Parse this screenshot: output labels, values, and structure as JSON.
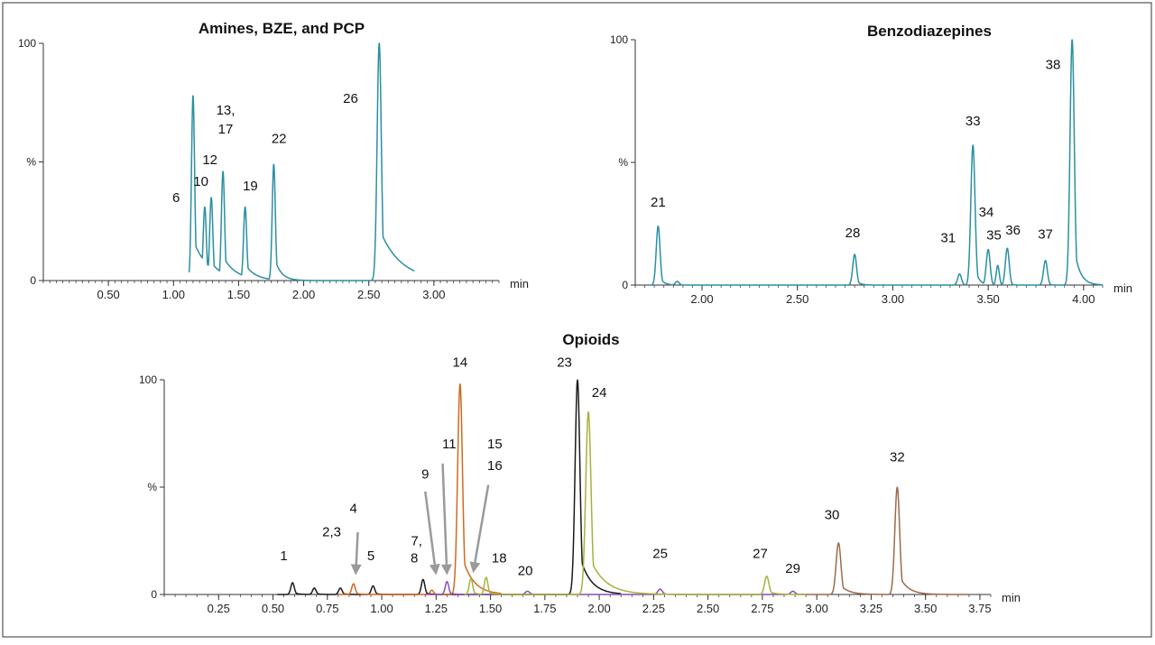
{
  "chart_data": [
    {
      "type": "line",
      "title": "Amines, BZE, and PCP",
      "xlabel": "min",
      "ylabel": "%",
      "xlim": [
        0.0,
        3.5
      ],
      "ylim": [
        0,
        100
      ],
      "y_ticks": [
        {
          "value": 0,
          "label": "0"
        },
        {
          "value": 50,
          "label": "%"
        },
        {
          "value": 100,
          "label": "100"
        }
      ],
      "x_ticks": [
        0.5,
        1.0,
        1.5,
        2.0,
        2.5,
        3.0
      ],
      "x_tick_labels": [
        "0.50",
        "1.00",
        "1.50",
        "2.00",
        "2.50",
        "3.00"
      ],
      "color": "#2a8fa3",
      "series": [
        {
          "name": "amines-trace",
          "color": "#2a8fa3",
          "baseline_range": [
            1.12,
            2.85
          ],
          "peaks": [
            {
              "rt": 1.15,
              "height": 78,
              "width": 0.012,
              "tail": 0.12
            },
            {
              "rt": 1.24,
              "height": 31,
              "width": 0.012,
              "tail": 0.1
            },
            {
              "rt": 1.29,
              "height": 35,
              "width": 0.012,
              "tail": 0.1
            },
            {
              "rt": 1.38,
              "height": 46,
              "width": 0.012,
              "tail": 0.1
            },
            {
              "rt": 1.38,
              "height": 16,
              "width": 0.012,
              "tail": 0.05
            },
            {
              "rt": 1.55,
              "height": 31,
              "width": 0.012,
              "tail": 0.08
            },
            {
              "rt": 1.77,
              "height": 49,
              "width": 0.012,
              "tail": 0.05
            },
            {
              "rt": 2.58,
              "height": 100,
              "width": 0.016,
              "tail": 0.16
            }
          ]
        }
      ],
      "peak_labels": [
        {
          "text": "6",
          "rt": 1.02,
          "y": 33
        },
        {
          "text": "10",
          "rt": 1.21,
          "y": 40
        },
        {
          "text": "12",
          "rt": 1.28,
          "y": 49
        },
        {
          "text": "13,",
          "rt": 1.4,
          "y": 70
        },
        {
          "text": "17",
          "rt": 1.4,
          "y": 62
        },
        {
          "text": "19",
          "rt": 1.59,
          "y": 38
        },
        {
          "text": "22",
          "rt": 1.81,
          "y": 58
        },
        {
          "text": "26",
          "rt": 2.36,
          "y": 75
        }
      ]
    },
    {
      "type": "line",
      "title": "Benzodiazepines",
      "xlabel": "min",
      "ylabel": "%",
      "xlim": [
        1.65,
        4.1
      ],
      "ylim": [
        0,
        100
      ],
      "y_ticks": [
        {
          "value": 0,
          "label": "0"
        },
        {
          "value": 50,
          "label": "%"
        },
        {
          "value": 100,
          "label": "100"
        }
      ],
      "x_ticks": [
        2.0,
        2.5,
        3.0,
        3.5,
        4.0
      ],
      "x_tick_labels": [
        "2.00",
        "2.50",
        "3.00",
        "3.50",
        "4.00"
      ],
      "color": "#2a8fa3",
      "series": [
        {
          "name": "benzodiazepines-trace",
          "color": "#2a8fa3",
          "baseline_range": [
            1.72,
            4.1
          ],
          "peaks": [
            {
              "rt": 1.77,
              "height": 24,
              "width": 0.01,
              "tail": 0.02
            },
            {
              "rt": 1.87,
              "height": 1.5,
              "width": 0.01,
              "tail": 0.01
            },
            {
              "rt": 2.8,
              "height": 12.5,
              "width": 0.01,
              "tail": 0.02
            },
            {
              "rt": 3.35,
              "height": 4.5,
              "width": 0.01,
              "tail": 0.01
            },
            {
              "rt": 3.42,
              "height": 57,
              "width": 0.011,
              "tail": 0.02
            },
            {
              "rt": 3.5,
              "height": 14.5,
              "width": 0.01,
              "tail": 0.01
            },
            {
              "rt": 3.55,
              "height": 8,
              "width": 0.008,
              "tail": 0.01
            },
            {
              "rt": 3.6,
              "height": 15,
              "width": 0.01,
              "tail": 0.01
            },
            {
              "rt": 3.8,
              "height": 10,
              "width": 0.01,
              "tail": 0.01
            },
            {
              "rt": 3.94,
              "height": 100,
              "width": 0.011,
              "tail": 0.03
            }
          ]
        }
      ],
      "peak_labels": [
        {
          "text": "21",
          "rt": 1.77,
          "y": 32
        },
        {
          "text": "28",
          "rt": 2.79,
          "y": 19.5
        },
        {
          "text": "31",
          "rt": 3.29,
          "y": 17.5
        },
        {
          "text": "33",
          "rt": 3.42,
          "y": 65
        },
        {
          "text": "34",
          "rt": 3.49,
          "y": 28
        },
        {
          "text": "35",
          "rt": 3.53,
          "y": 18.5
        },
        {
          "text": "36",
          "rt": 3.63,
          "y": 20.5
        },
        {
          "text": "37",
          "rt": 3.8,
          "y": 19
        },
        {
          "text": "38",
          "rt": 3.84,
          "y": 88
        }
      ]
    },
    {
      "type": "line",
      "title": "Opioids",
      "xlabel": "min",
      "ylabel": "%",
      "xlim": [
        0.0,
        3.8
      ],
      "ylim": [
        0,
        100
      ],
      "y_ticks": [
        {
          "value": 0,
          "label": "0"
        },
        {
          "value": 50,
          "label": "%"
        },
        {
          "value": 100,
          "label": "100"
        }
      ],
      "x_ticks": [
        0.25,
        0.5,
        0.75,
        1.0,
        1.25,
        1.5,
        1.75,
        2.0,
        2.25,
        2.5,
        2.75,
        3.0,
        3.25,
        3.5,
        3.75
      ],
      "x_tick_labels": [
        "0.25",
        "0.50",
        "0.75",
        "1.00",
        "1.25",
        "1.50",
        "1.75",
        "2.00",
        "2.25",
        "2.50",
        "2.75",
        "3.00",
        "3.25",
        "3.50",
        "3.75"
      ],
      "series": [
        {
          "name": "opioid-trace-black",
          "color": "#1a1a1a",
          "baseline_range": [
            0.52,
            2.1
          ],
          "peaks": [
            {
              "rt": 0.59,
              "height": 5.5,
              "width": 0.008,
              "tail": 0.02
            },
            {
              "rt": 0.69,
              "height": 3,
              "width": 0.008,
              "tail": 0.02
            },
            {
              "rt": 0.81,
              "height": 3,
              "width": 0.008,
              "tail": 0.02
            },
            {
              "rt": 0.96,
              "height": 4,
              "width": 0.008,
              "tail": 0.02
            },
            {
              "rt": 1.19,
              "height": 7,
              "width": 0.008,
              "tail": 0.02
            },
            {
              "rt": 1.9,
              "height": 100,
              "width": 0.011,
              "tail": 0.05
            }
          ]
        },
        {
          "name": "opioid-trace-orange",
          "color": "#d2691e",
          "baseline_range": [
            0.8,
            1.55
          ],
          "peaks": [
            {
              "rt": 0.87,
              "height": 5,
              "width": 0.008,
              "tail": 0.02
            },
            {
              "rt": 1.23,
              "height": 2,
              "width": 0.008,
              "tail": 0.02
            },
            {
              "rt": 1.36,
              "height": 98,
              "width": 0.011,
              "tail": 0.05
            },
            {
              "rt": 1.42,
              "height": 4,
              "width": 0.008,
              "tail": 0.01
            }
          ]
        },
        {
          "name": "opioid-trace-purple",
          "color": "#8a4fb0",
          "baseline_range": [
            1.2,
            2.95
          ],
          "peaks": [
            {
              "rt": 1.3,
              "height": 6,
              "width": 0.008,
              "tail": 0.02
            },
            {
              "rt": 1.67,
              "height": 1.5,
              "width": 0.01,
              "tail": 0.02
            },
            {
              "rt": 2.28,
              "height": 2.5,
              "width": 0.01,
              "tail": 0.02
            },
            {
              "rt": 2.89,
              "height": 1.5,
              "width": 0.01,
              "tail": 0.02
            }
          ]
        },
        {
          "name": "opioid-trace-olive",
          "color": "#a6b23c",
          "baseline_range": [
            1.38,
            2.95
          ],
          "peaks": [
            {
              "rt": 1.41,
              "height": 7.5,
              "width": 0.008,
              "tail": 0.02
            },
            {
              "rt": 1.48,
              "height": 8,
              "width": 0.008,
              "tail": 0.02
            },
            {
              "rt": 1.95,
              "height": 85,
              "width": 0.012,
              "tail": 0.07
            },
            {
              "rt": 2.77,
              "height": 8.5,
              "width": 0.01,
              "tail": 0.03
            }
          ]
        },
        {
          "name": "opioid-trace-brown",
          "color": "#9c6a4c",
          "baseline_range": [
            2.95,
            3.7
          ],
          "peaks": [
            {
              "rt": 3.1,
              "height": 24,
              "width": 0.011,
              "tail": 0.04
            },
            {
              "rt": 3.37,
              "height": 50,
              "width": 0.011,
              "tail": 0.04
            }
          ]
        }
      ],
      "peak_labels": [
        {
          "text": "1",
          "rt": 0.55,
          "y": 16
        },
        {
          "text": "2,3",
          "rt": 0.77,
          "y": 27
        },
        {
          "text": "4",
          "rt": 0.87,
          "y": 38
        },
        {
          "text": "5",
          "rt": 0.95,
          "y": 16
        },
        {
          "text": "7,",
          "rt": 1.16,
          "y": 23
        },
        {
          "text": "8",
          "rt": 1.15,
          "y": 15
        },
        {
          "text": "9",
          "rt": 1.2,
          "y": 54
        },
        {
          "text": "11",
          "rt": 1.31,
          "y": 68
        },
        {
          "text": "14",
          "rt": 1.36,
          "y": 106
        },
        {
          "text": "15",
          "rt": 1.52,
          "y": 68
        },
        {
          "text": "16",
          "rt": 1.52,
          "y": 58
        },
        {
          "text": "18",
          "rt": 1.54,
          "y": 15
        },
        {
          "text": "20",
          "rt": 1.66,
          "y": 9
        },
        {
          "text": "23",
          "rt": 1.84,
          "y": 106
        },
        {
          "text": "24",
          "rt": 2.0,
          "y": 92
        },
        {
          "text": "25",
          "rt": 2.28,
          "y": 17
        },
        {
          "text": "27",
          "rt": 2.74,
          "y": 17
        },
        {
          "text": "29",
          "rt": 2.89,
          "y": 10
        },
        {
          "text": "30",
          "rt": 3.07,
          "y": 35
        },
        {
          "text": "32",
          "rt": 3.37,
          "y": 62
        }
      ],
      "arrows": [
        {
          "from_rt": 0.89,
          "from_y": 29,
          "to_rt": 0.88,
          "to_y": 9
        },
        {
          "from_rt": 1.2,
          "from_y": 48,
          "to_rt": 1.25,
          "to_y": 9
        },
        {
          "from_rt": 1.28,
          "from_y": 61,
          "to_rt": 1.3,
          "to_y": 9
        },
        {
          "from_rt": 1.49,
          "from_y": 51,
          "to_rt": 1.42,
          "to_y": 10
        }
      ]
    }
  ]
}
